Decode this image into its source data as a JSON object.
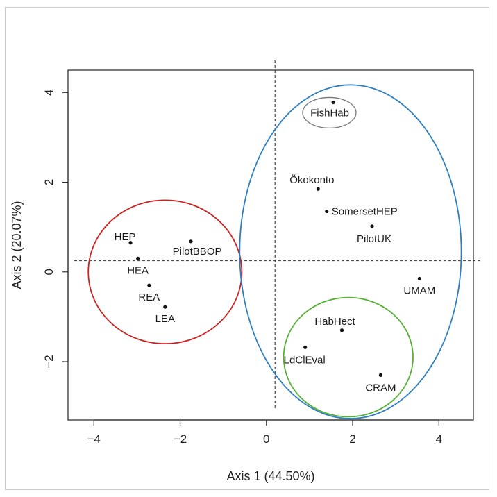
{
  "chart_data": {
    "type": "scatter",
    "xlabel": "Axis 1 (44.50%)",
    "ylabel": "Axis 2 (20.07%)",
    "xlim": [
      -4.6,
      4.8
    ],
    "ylim": [
      -3.3,
      4.5
    ],
    "xticks": [
      -4,
      -2,
      0,
      2,
      4
    ],
    "yticks": [
      -2,
      0,
      2,
      4
    ],
    "reference_lines": {
      "x": 0.2,
      "y": 0.25
    },
    "points": [
      {
        "label": "HEP",
        "x": -3.15,
        "y": 0.65
      },
      {
        "label": "HEA",
        "x": -2.98,
        "y": 0.3
      },
      {
        "label": "REA",
        "x": -2.72,
        "y": -0.3
      },
      {
        "label": "LEA",
        "x": -2.35,
        "y": -0.78
      },
      {
        "label": "PilotBBOP",
        "x": -1.75,
        "y": 0.68
      },
      {
        "label": "FishHab",
        "x": 1.55,
        "y": 3.78
      },
      {
        "label": "Ökokonto",
        "x": 1.2,
        "y": 1.85
      },
      {
        "label": "SomersetHEP",
        "x": 1.4,
        "y": 1.35
      },
      {
        "label": "PilotUK",
        "x": 2.45,
        "y": 1.02
      },
      {
        "label": "UMAM",
        "x": 3.55,
        "y": -0.15
      },
      {
        "label": "HabHect",
        "x": 1.75,
        "y": -1.3
      },
      {
        "label": "LdClEval",
        "x": 0.9,
        "y": -1.68
      },
      {
        "label": "CRAM",
        "x": 2.65,
        "y": -2.3
      }
    ],
    "groups": [
      {
        "color": "#cc2222",
        "cx": -2.35,
        "cy": 0.0,
        "rx": 1.78,
        "ry": 1.6
      },
      {
        "color": "#2e7fc2",
        "cx": 1.95,
        "cy": 0.45,
        "rx": 2.57,
        "ry": 3.72
      },
      {
        "color": "#55b034",
        "cx": 1.9,
        "cy": -1.9,
        "rx": 1.5,
        "ry": 1.33
      },
      {
        "color": "#777777",
        "cx": 1.46,
        "cy": 3.55,
        "rx": 0.62,
        "ry": 0.34
      }
    ]
  }
}
